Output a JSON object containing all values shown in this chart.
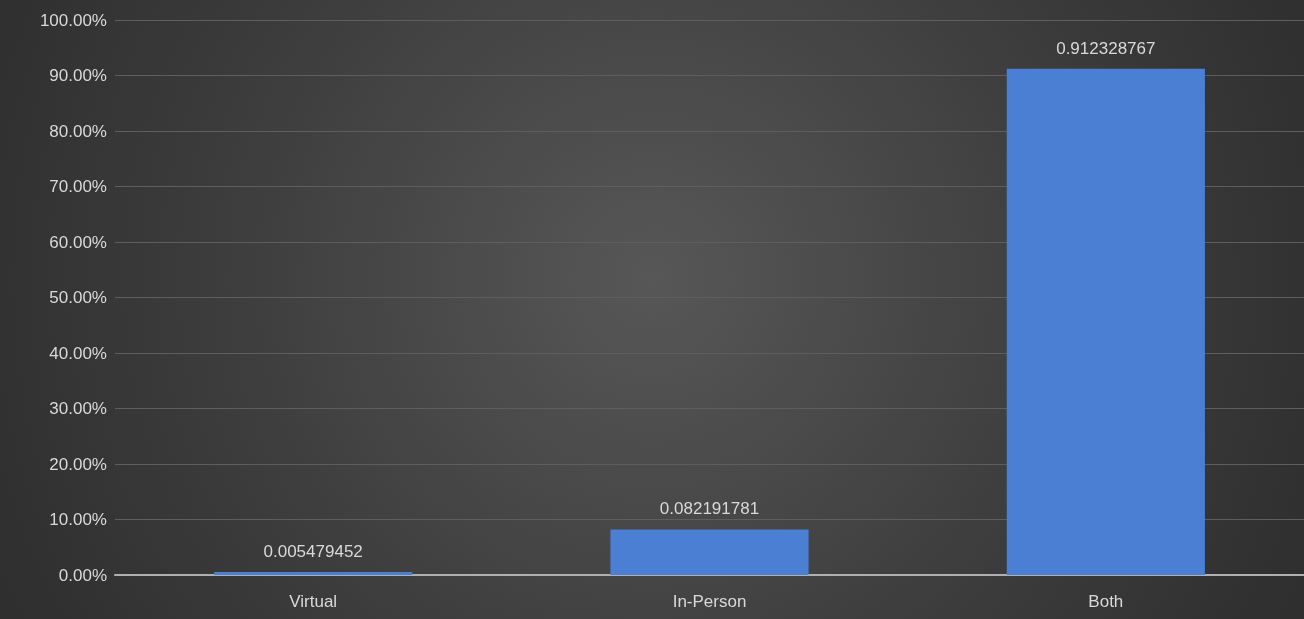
{
  "chart_data": {
    "type": "bar",
    "categories": [
      "Virtual",
      "In-Person",
      "Both"
    ],
    "values": [
      0.005479452,
      0.082191781,
      0.912328767
    ],
    "color": "#4a7fd4",
    "ylim": [
      0,
      1
    ],
    "yticks": [
      {
        "value": 0,
        "label": "0.00%"
      },
      {
        "value": 0.1,
        "label": "10.00%"
      },
      {
        "value": 0.2,
        "label": "20.00%"
      },
      {
        "value": 0.3,
        "label": "30.00%"
      },
      {
        "value": 0.4,
        "label": "40.00%"
      },
      {
        "value": 0.5,
        "label": "50.00%"
      },
      {
        "value": 0.6,
        "label": "60.00%"
      },
      {
        "value": 0.7,
        "label": "70.00%"
      },
      {
        "value": 0.8,
        "label": "80.00%"
      },
      {
        "value": 0.9,
        "label": "90.00%"
      },
      {
        "value": 1,
        "label": "100.00%"
      }
    ],
    "grid": true,
    "data_labels": true
  }
}
